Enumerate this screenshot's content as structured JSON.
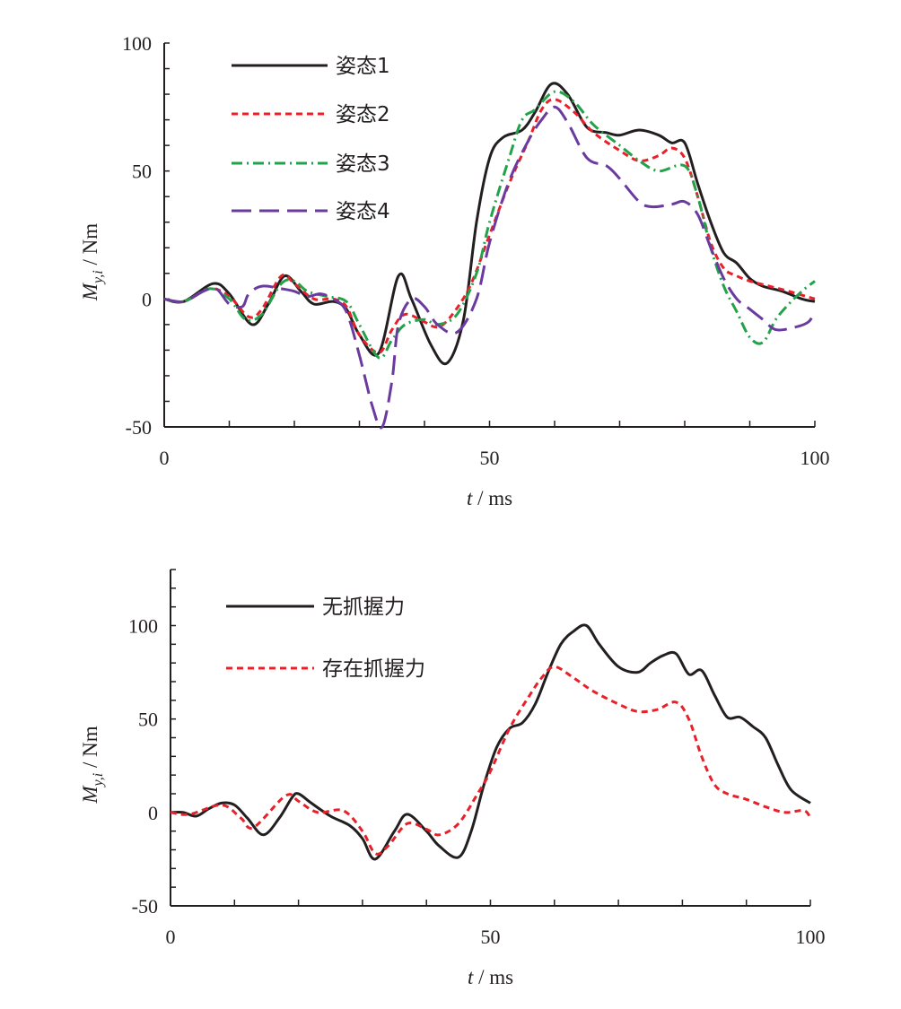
{
  "colors": {
    "black": "#231f20",
    "red": "#e8202a",
    "green": "#22a24a",
    "purple": "#6a3a9e"
  },
  "chart_data": [
    {
      "type": "line",
      "xlabel": "t / ms",
      "ylabel": "M_y,i / Nm",
      "xlim": [
        0,
        100
      ],
      "ylim": [
        -50,
        100
      ],
      "xticks": [
        0,
        50,
        100
      ],
      "yticks": [
        -50,
        0,
        50,
        100
      ],
      "grid": false,
      "legend_placement": "top-left",
      "series": [
        {
          "name": "姿态1",
          "color": "#231f20",
          "style": "solid",
          "x": [
            0,
            3,
            7.5,
            10,
            13.5,
            16,
            18.5,
            21,
            23,
            26,
            28,
            30,
            33,
            36,
            38,
            41,
            43.5,
            46,
            48,
            50,
            52,
            55,
            57,
            59.5,
            62,
            65,
            68,
            70,
            73,
            76,
            78,
            80,
            82,
            84,
            86,
            88,
            90,
            92,
            95,
            98,
            100
          ],
          "y": [
            0,
            -1,
            6,
            2,
            -10,
            -2,
            9,
            3,
            -2,
            -1,
            -4,
            -14,
            -21,
            9,
            0,
            -18,
            -25,
            -8,
            30,
            55,
            63,
            66,
            73,
            84,
            80,
            67,
            65,
            64,
            66,
            64,
            61,
            61,
            45,
            30,
            18,
            14,
            8,
            5,
            3,
            0,
            -1
          ]
        },
        {
          "name": "姿态2",
          "color": "#e8202a",
          "style": "dash",
          "x": [
            0,
            3,
            7,
            10,
            13,
            15,
            18,
            20,
            23,
            26,
            28,
            30,
            33,
            35,
            37,
            40,
            42,
            44,
            47,
            50,
            53,
            56,
            58,
            60,
            63,
            66,
            70,
            73,
            76,
            78,
            80,
            82,
            84,
            86,
            88,
            90,
            93,
            96,
            100
          ],
          "y": [
            0,
            -1,
            4,
            1,
            -7,
            -4,
            9,
            6,
            0,
            0,
            -3,
            -14,
            -21,
            -12,
            -6,
            -9,
            -11,
            -7,
            5,
            25,
            45,
            62,
            74,
            78,
            73,
            65,
            58,
            54,
            56,
            59,
            55,
            40,
            22,
            12,
            9,
            7,
            5,
            3,
            0
          ]
        },
        {
          "name": "姿态3",
          "color": "#22a24a",
          "style": "dashdot",
          "x": [
            0,
            3,
            7,
            10,
            12.5,
            15,
            18,
            20,
            22,
            25,
            28,
            30,
            33,
            35,
            37,
            40,
            42,
            45,
            48,
            50,
            53,
            55,
            57,
            60,
            63,
            66,
            70,
            73,
            76,
            80,
            82,
            84,
            86,
            88,
            90,
            92,
            94,
            96,
            98,
            100
          ],
          "y": [
            0,
            -1,
            4,
            0,
            -8,
            -6,
            6,
            7,
            3,
            1,
            -1,
            -10,
            -23,
            -16,
            -10,
            -8,
            -10,
            -6,
            10,
            30,
            55,
            70,
            74,
            81,
            77,
            68,
            60,
            54,
            50,
            52,
            40,
            20,
            5,
            -5,
            -15,
            -17,
            -8,
            -2,
            3,
            7
          ]
        },
        {
          "name": "姿态4",
          "color": "#6a3a9e",
          "style": "longdash",
          "x": [
            0,
            3,
            6,
            8,
            10,
            12,
            13,
            15,
            18,
            20,
            22,
            24,
            26,
            28,
            30,
            32,
            33.5,
            35,
            36,
            38,
            40,
            42,
            45,
            48,
            50,
            53,
            56,
            58,
            60,
            62,
            65,
            68,
            70,
            73,
            75,
            78,
            80,
            82,
            84,
            86,
            88,
            90,
            92,
            94,
            97,
            99,
            100
          ],
          "y": [
            0,
            -1,
            3,
            4,
            -2,
            -3,
            2,
            5,
            4,
            3,
            1,
            2,
            0,
            -5,
            -22,
            -42,
            -50,
            -32,
            -10,
            0,
            -3,
            -10,
            -13,
            0,
            22,
            46,
            62,
            70,
            75,
            69,
            55,
            52,
            47,
            38,
            36,
            37,
            38,
            33,
            20,
            8,
            0,
            -4,
            -8,
            -12,
            -11,
            -9,
            -5
          ]
        }
      ]
    },
    {
      "type": "line",
      "xlabel": "t / ms",
      "ylabel": "M_y,i / Nm",
      "xlim": [
        0,
        100
      ],
      "ylim": [
        -50,
        130
      ],
      "xticks": [
        0,
        50,
        100
      ],
      "yticks": [
        -50,
        0,
        50,
        100
      ],
      "grid": false,
      "legend_placement": "top-left",
      "series": [
        {
          "name": "无抓握力",
          "color": "#231f20",
          "style": "solid",
          "x": [
            0,
            2,
            4,
            6,
            8,
            10,
            12,
            14.5,
            17,
            19,
            20,
            22,
            25,
            28,
            30,
            32,
            35,
            37,
            40,
            42,
            45,
            47,
            49,
            51,
            53,
            55,
            57,
            59,
            61,
            63,
            65,
            67,
            70,
            73,
            75,
            77,
            79,
            81,
            83,
            85,
            87,
            89,
            91,
            93,
            95,
            97,
            100
          ],
          "y": [
            0,
            0,
            -2,
            2,
            5,
            4,
            -3,
            -12,
            -3,
            8,
            10,
            5,
            -2,
            -7,
            -14,
            -25,
            -10,
            -1,
            -10,
            -18,
            -24,
            -10,
            15,
            35,
            45,
            48,
            58,
            75,
            90,
            97,
            100,
            90,
            78,
            75,
            80,
            84,
            85,
            74,
            76,
            63,
            51,
            51,
            46,
            40,
            25,
            12,
            5
          ]
        },
        {
          "name": "存在抓握力",
          "color": "#e8202a",
          "style": "dash",
          "x": [
            0,
            3,
            8,
            11,
            13,
            18,
            20,
            23,
            27,
            30,
            32,
            34,
            37,
            40,
            42,
            45,
            48,
            50,
            53,
            56,
            58,
            60,
            63,
            66,
            70,
            73,
            76,
            79,
            81,
            83,
            85,
            87,
            90,
            93,
            96,
            99,
            100
          ],
          "y": [
            0,
            -1,
            4,
            -3,
            -8,
            9,
            6,
            0,
            1,
            -10,
            -22,
            -18,
            -6,
            -9,
            -12,
            -6,
            10,
            22,
            45,
            62,
            72,
            78,
            72,
            65,
            58,
            54,
            55,
            59,
            50,
            30,
            15,
            10,
            7,
            3,
            0,
            1,
            -3
          ]
        }
      ]
    }
  ]
}
